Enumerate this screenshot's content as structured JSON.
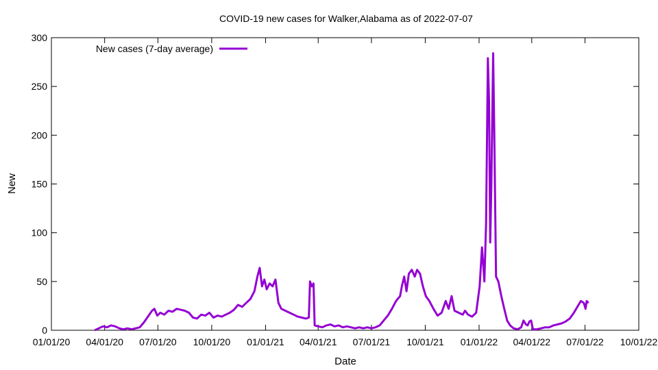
{
  "chart_data": {
    "type": "line",
    "title": "COVID-19 new cases for Walker,Alabama as of 2022-07-07",
    "xlabel": "Date",
    "ylabel": "New",
    "xlim": [
      "2020-01-01",
      "2022-10-01"
    ],
    "ylim": [
      0,
      300
    ],
    "x_ticks": [
      {
        "date": "2020-01-01",
        "label": "01/01/20"
      },
      {
        "date": "2020-04-01",
        "label": "04/01/20"
      },
      {
        "date": "2020-07-01",
        "label": "07/01/20"
      },
      {
        "date": "2020-10-01",
        "label": "10/01/20"
      },
      {
        "date": "2021-01-01",
        "label": "01/01/21"
      },
      {
        "date": "2021-04-01",
        "label": "04/01/21"
      },
      {
        "date": "2021-07-01",
        "label": "07/01/21"
      },
      {
        "date": "2021-10-01",
        "label": "10/01/21"
      },
      {
        "date": "2022-01-01",
        "label": "01/01/22"
      },
      {
        "date": "2022-04-01",
        "label": "04/01/22"
      },
      {
        "date": "2022-07-01",
        "label": "07/01/22"
      },
      {
        "date": "2022-10-01",
        "label": "10/01/22"
      }
    ],
    "y_ticks": [
      0,
      50,
      100,
      150,
      200,
      250,
      300
    ],
    "grid": false,
    "legend_position": "top-left",
    "series": [
      {
        "name": "New cases (7-day average)",
        "color": "#9400d3",
        "points": [
          [
            "2020-03-15",
            0
          ],
          [
            "2020-03-22",
            2
          ],
          [
            "2020-03-29",
            4
          ],
          [
            "2020-04-05",
            3
          ],
          [
            "2020-04-12",
            5
          ],
          [
            "2020-04-19",
            4
          ],
          [
            "2020-04-26",
            2
          ],
          [
            "2020-05-03",
            1
          ],
          [
            "2020-05-10",
            2
          ],
          [
            "2020-05-17",
            1
          ],
          [
            "2020-05-24",
            2
          ],
          [
            "2020-05-31",
            3
          ],
          [
            "2020-06-07",
            8
          ],
          [
            "2020-06-14",
            14
          ],
          [
            "2020-06-21",
            20
          ],
          [
            "2020-06-25",
            22
          ],
          [
            "2020-06-30",
            15
          ],
          [
            "2020-07-05",
            18
          ],
          [
            "2020-07-12",
            16
          ],
          [
            "2020-07-19",
            20
          ],
          [
            "2020-07-26",
            19
          ],
          [
            "2020-08-02",
            22
          ],
          [
            "2020-08-09",
            21
          ],
          [
            "2020-08-16",
            20
          ],
          [
            "2020-08-23",
            18
          ],
          [
            "2020-08-30",
            13
          ],
          [
            "2020-09-06",
            12
          ],
          [
            "2020-09-13",
            16
          ],
          [
            "2020-09-20",
            15
          ],
          [
            "2020-09-27",
            18
          ],
          [
            "2020-10-04",
            13
          ],
          [
            "2020-10-11",
            15
          ],
          [
            "2020-10-18",
            14
          ],
          [
            "2020-10-25",
            16
          ],
          [
            "2020-11-01",
            18
          ],
          [
            "2020-11-08",
            21
          ],
          [
            "2020-11-15",
            26
          ],
          [
            "2020-11-22",
            24
          ],
          [
            "2020-11-29",
            28
          ],
          [
            "2020-12-06",
            32
          ],
          [
            "2020-12-13",
            40
          ],
          [
            "2020-12-18",
            55
          ],
          [
            "2020-12-22",
            64
          ],
          [
            "2020-12-26",
            45
          ],
          [
            "2020-12-30",
            52
          ],
          [
            "2021-01-03",
            42
          ],
          [
            "2021-01-08",
            48
          ],
          [
            "2021-01-13",
            45
          ],
          [
            "2021-01-18",
            52
          ],
          [
            "2021-01-23",
            28
          ],
          [
            "2021-01-28",
            22
          ],
          [
            "2021-02-04",
            20
          ],
          [
            "2021-02-11",
            18
          ],
          [
            "2021-02-18",
            16
          ],
          [
            "2021-02-25",
            14
          ],
          [
            "2021-03-04",
            13
          ],
          [
            "2021-03-11",
            12
          ],
          [
            "2021-03-16",
            13
          ],
          [
            "2021-03-18",
            50
          ],
          [
            "2021-03-21",
            45
          ],
          [
            "2021-03-24",
            48
          ],
          [
            "2021-03-26",
            5
          ],
          [
            "2021-04-01",
            4
          ],
          [
            "2021-04-08",
            3
          ],
          [
            "2021-04-15",
            5
          ],
          [
            "2021-04-22",
            6
          ],
          [
            "2021-04-29",
            4
          ],
          [
            "2021-05-06",
            5
          ],
          [
            "2021-05-13",
            3
          ],
          [
            "2021-05-20",
            4
          ],
          [
            "2021-05-27",
            3
          ],
          [
            "2021-06-03",
            2
          ],
          [
            "2021-06-10",
            3
          ],
          [
            "2021-06-17",
            2
          ],
          [
            "2021-06-24",
            3
          ],
          [
            "2021-07-01",
            2
          ],
          [
            "2021-07-08",
            3
          ],
          [
            "2021-07-15",
            5
          ],
          [
            "2021-07-22",
            10
          ],
          [
            "2021-07-29",
            15
          ],
          [
            "2021-08-05",
            22
          ],
          [
            "2021-08-12",
            30
          ],
          [
            "2021-08-19",
            35
          ],
          [
            "2021-08-22",
            45
          ],
          [
            "2021-08-26",
            55
          ],
          [
            "2021-08-30",
            40
          ],
          [
            "2021-09-03",
            58
          ],
          [
            "2021-09-08",
            62
          ],
          [
            "2021-09-13",
            55
          ],
          [
            "2021-09-17",
            62
          ],
          [
            "2021-09-22",
            58
          ],
          [
            "2021-09-27",
            45
          ],
          [
            "2021-10-02",
            35
          ],
          [
            "2021-10-08",
            30
          ],
          [
            "2021-10-15",
            22
          ],
          [
            "2021-10-22",
            15
          ],
          [
            "2021-10-29",
            18
          ],
          [
            "2021-11-05",
            30
          ],
          [
            "2021-11-10",
            22
          ],
          [
            "2021-11-15",
            35
          ],
          [
            "2021-11-20",
            20
          ],
          [
            "2021-11-27",
            18
          ],
          [
            "2021-12-04",
            16
          ],
          [
            "2021-12-08",
            20
          ],
          [
            "2021-12-13",
            16
          ],
          [
            "2021-12-20",
            14
          ],
          [
            "2021-12-27",
            18
          ],
          [
            "2022-01-02",
            45
          ],
          [
            "2022-01-06",
            85
          ],
          [
            "2022-01-10",
            50
          ],
          [
            "2022-01-13",
            110
          ],
          [
            "2022-01-16",
            279
          ],
          [
            "2022-01-18",
            235
          ],
          [
            "2022-01-20",
            90
          ],
          [
            "2022-01-22",
            150
          ],
          [
            "2022-01-25",
            284
          ],
          [
            "2022-01-27",
            200
          ],
          [
            "2022-01-30",
            55
          ],
          [
            "2022-02-03",
            50
          ],
          [
            "2022-02-08",
            35
          ],
          [
            "2022-02-13",
            22
          ],
          [
            "2022-02-18",
            10
          ],
          [
            "2022-02-23",
            5
          ],
          [
            "2022-03-01",
            2
          ],
          [
            "2022-03-08",
            1
          ],
          [
            "2022-03-14",
            3
          ],
          [
            "2022-03-18",
            10
          ],
          [
            "2022-03-22",
            6
          ],
          [
            "2022-03-25",
            5
          ],
          [
            "2022-03-28",
            9
          ],
          [
            "2022-03-31",
            10
          ],
          [
            "2022-04-03",
            1
          ],
          [
            "2022-04-10",
            1
          ],
          [
            "2022-04-17",
            2
          ],
          [
            "2022-04-24",
            3
          ],
          [
            "2022-05-01",
            3
          ],
          [
            "2022-05-08",
            5
          ],
          [
            "2022-05-15",
            6
          ],
          [
            "2022-05-22",
            7
          ],
          [
            "2022-05-29",
            9
          ],
          [
            "2022-06-05",
            12
          ],
          [
            "2022-06-12",
            18
          ],
          [
            "2022-06-19",
            25
          ],
          [
            "2022-06-24",
            30
          ],
          [
            "2022-06-29",
            28
          ],
          [
            "2022-07-02",
            22
          ],
          [
            "2022-07-04",
            30
          ],
          [
            "2022-07-07",
            28
          ]
        ]
      }
    ]
  }
}
